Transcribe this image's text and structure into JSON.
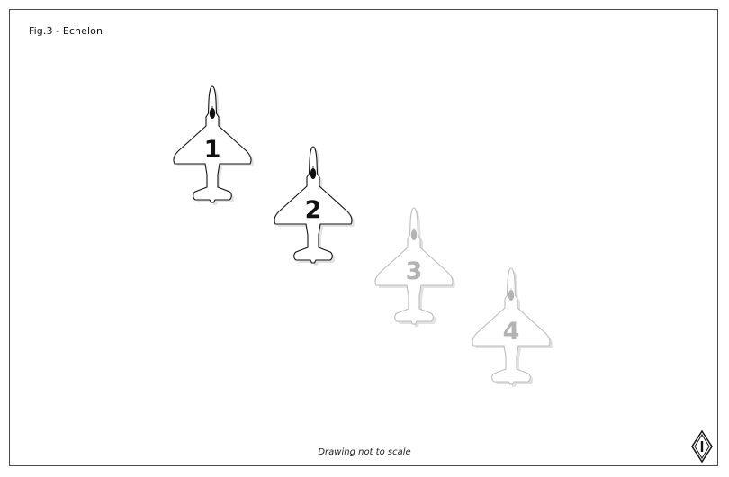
{
  "figure": {
    "title": "Fig.3 - Echelon",
    "footnote": "Drawing not to scale"
  },
  "aircraft": [
    {
      "number": "1",
      "color": "#111111",
      "outline": "#111111"
    },
    {
      "number": "2",
      "color": "#111111",
      "outline": "#111111"
    },
    {
      "number": "3",
      "color": "#b3b3b3",
      "outline": "#bdbdbd"
    },
    {
      "number": "4",
      "color": "#b3b3b3",
      "outline": "#bdbdbd"
    }
  ],
  "icons": {
    "north_marker": "north-indicator-icon"
  }
}
